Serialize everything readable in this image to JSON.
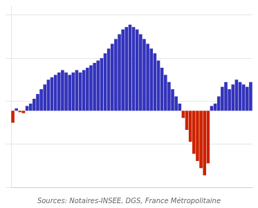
{
  "chart_data": {
    "type": "bar",
    "annotations": [
      "Sources: Notaires-INSEE, DGS, France Métropolitaine"
    ],
    "categories": [
      null,
      null,
      null,
      null,
      null,
      null,
      null,
      null,
      null,
      null,
      null,
      null,
      null,
      null,
      null,
      null,
      null,
      null,
      null,
      null,
      null,
      null,
      null,
      null,
      null,
      null,
      null,
      null,
      null,
      null,
      null,
      null,
      null,
      null,
      null,
      null,
      null,
      null,
      null,
      null,
      null,
      null,
      null,
      null,
      null,
      null,
      null,
      null,
      null,
      null,
      null,
      null,
      null,
      null,
      null,
      null,
      null,
      null,
      null,
      null,
      null,
      null,
      null,
      null,
      null,
      null,
      null,
      null
    ],
    "values": [
      -2.5,
      0.5,
      -0.3,
      -0.5,
      1.0,
      1.5,
      2.5,
      3.5,
      4.5,
      5.5,
      6.5,
      7.0,
      7.5,
      8.0,
      8.5,
      8.0,
      7.5,
      8.0,
      8.5,
      8.0,
      8.5,
      9.0,
      9.5,
      10.0,
      10.5,
      11.0,
      12.0,
      13.0,
      14.0,
      15.0,
      16.0,
      17.0,
      17.5,
      18.0,
      17.5,
      17.0,
      16.0,
      15.0,
      14.0,
      13.0,
      12.0,
      10.5,
      9.0,
      7.5,
      6.0,
      4.5,
      3.0,
      1.5,
      -1.5,
      -4.0,
      -6.5,
      -9.0,
      -10.5,
      -12.0,
      -13.5,
      -11.0,
      1.0,
      1.5,
      3.0,
      5.0,
      6.0,
      4.5,
      5.5,
      6.5,
      6.0,
      5.5,
      5.0,
      6.0
    ],
    "colors": [
      "#cc2200",
      "#3333bb",
      "#cc2200",
      "#cc2200",
      "#3333bb",
      "#3333bb",
      "#3333bb",
      "#3333bb",
      "#3333bb",
      "#3333bb",
      "#3333bb",
      "#3333bb",
      "#3333bb",
      "#3333bb",
      "#3333bb",
      "#3333bb",
      "#3333bb",
      "#3333bb",
      "#3333bb",
      "#3333bb",
      "#3333bb",
      "#3333bb",
      "#3333bb",
      "#3333bb",
      "#3333bb",
      "#3333bb",
      "#3333bb",
      "#3333bb",
      "#3333bb",
      "#3333bb",
      "#3333bb",
      "#3333bb",
      "#3333bb",
      "#3333bb",
      "#3333bb",
      "#3333bb",
      "#3333bb",
      "#3333bb",
      "#3333bb",
      "#3333bb",
      "#3333bb",
      "#3333bb",
      "#3333bb",
      "#3333bb",
      "#3333bb",
      "#3333bb",
      "#3333bb",
      "#3333bb",
      "#cc2200",
      "#cc2200",
      "#cc2200",
      "#cc2200",
      "#cc2200",
      "#cc2200",
      "#cc2200",
      "#cc2200",
      "#3333bb",
      "#3333bb",
      "#3333bb",
      "#3333bb",
      "#3333bb",
      "#3333bb",
      "#3333bb",
      "#3333bb",
      "#3333bb",
      "#3333bb",
      "#3333bb",
      "#3333bb"
    ],
    "ylim": [
      -16,
      22
    ],
    "yticks": [
      -16,
      -7,
      2,
      11,
      20
    ],
    "grid": true,
    "tick_labels": false
  }
}
